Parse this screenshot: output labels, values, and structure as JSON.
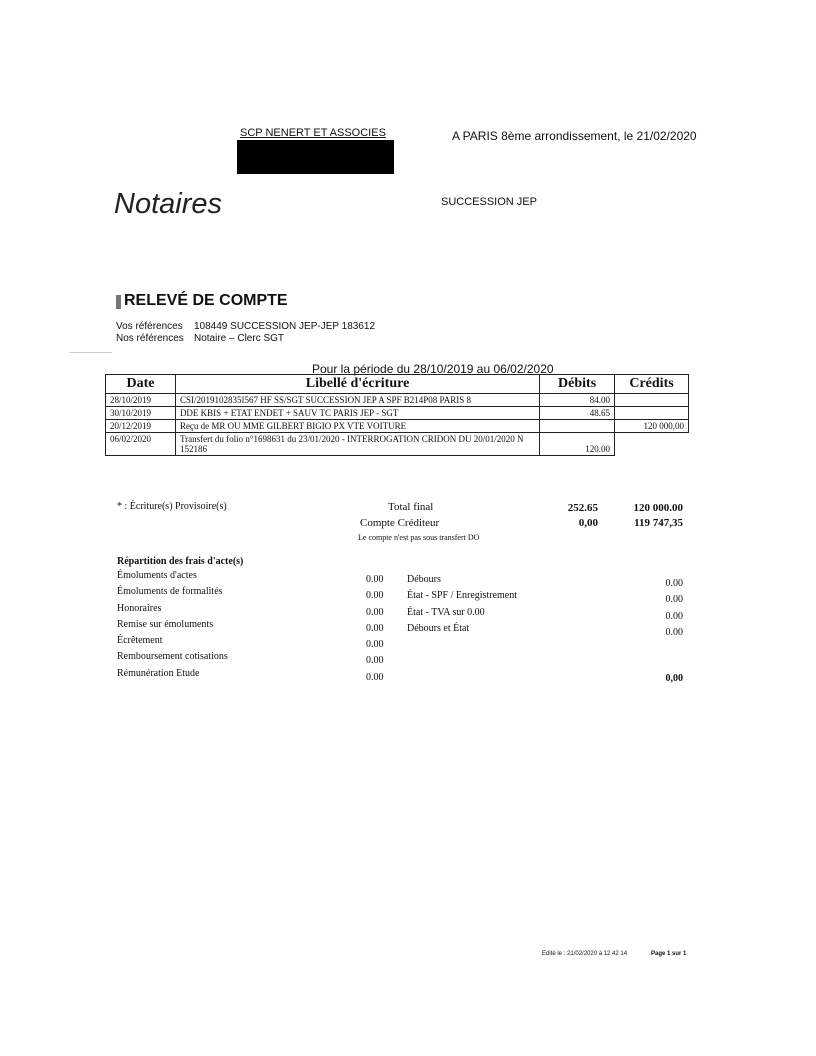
{
  "header": {
    "firm": "SCP NENERT ET ASSOCIES",
    "place_date": "A PARIS 8ème arrondissement, le 21/02/2020",
    "logo_text": "Notaires",
    "dossier": "SUCCESSION JEP"
  },
  "title": "RELEVÉ DE COMPTE",
  "references": [
    {
      "label": "Vos références",
      "value": "108449 SUCCESSION JEP-JEP 183612"
    },
    {
      "label": "Nos références",
      "value": "Notaire  – Clerc SGT"
    }
  ],
  "period": "Pour la période du 28/10/2019 au 06/02/2020",
  "table": {
    "headers": [
      "Date",
      "Libellé d'écriture",
      "Débits",
      "Crédits"
    ],
    "rows": [
      {
        "date": "28/10/2019",
        "label": "CSI/2019102835I567 HF SS/SGT SUCCESSION JEP A SPF B214P08 PARIS 8",
        "debit": "84.00",
        "credit": ""
      },
      {
        "date": "30/10/2019",
        "label": "DDE KBIS + ETAT ENDET + SAUV TC PARIS JEP - SGT",
        "debit": "48.65",
        "credit": ""
      },
      {
        "date": "20/12/2019",
        "label": "Reçu de MR OU MME GILBERT BIGIO PX VTE VOITURE",
        "debit": "",
        "credit": "120 000,00"
      },
      {
        "date": "06/02/2020",
        "label": "Transfert du folio n°1698631 du 23/01/2020 - INTERROGATION CRIDON DU 20/01/2020 N 152186",
        "debit": "120.00",
        "credit": ""
      }
    ]
  },
  "summary": {
    "provisional_note": "* : Écriture(s) Provisoire(s)",
    "total_label": "Total final",
    "total_debit": "252.65",
    "total_credit": "120 000.00",
    "balance_label": "Compte Créditeur",
    "balance_debit": "0,00",
    "balance_credit": "119 747,35",
    "transfer_note": "Le compte n'est pas sous transfert DO"
  },
  "fees": {
    "title": "Répartition des frais d'acte(s)",
    "left": [
      {
        "label": "Émoluments d'actes",
        "value": "0.00"
      },
      {
        "label": "Émoluments de formalités",
        "value": "0.00"
      },
      {
        "label": "Honoraires",
        "value": "0.00"
      },
      {
        "label": "Remise sur émoluments",
        "value": "0.00"
      },
      {
        "label": "Écrêtement",
        "value": "0.00"
      },
      {
        "label": "Remboursement cotisations",
        "value": "0.00"
      },
      {
        "label": "Rémunération Etude",
        "value": "0.00"
      }
    ],
    "right": [
      {
        "label": "Débours",
        "value": "0.00"
      },
      {
        "label": "État - SPF / Enregistrement",
        "value": "0.00"
      },
      {
        "label": "État - TVA sur 0.00",
        "value": "0.00"
      },
      {
        "label": "Débours et État",
        "value": "0.00"
      }
    ],
    "grand_total": "0,00"
  },
  "footer": {
    "edited": "Edité le : 21/02/2020 à 12 42 14",
    "page": "Page 1 sur 1"
  }
}
